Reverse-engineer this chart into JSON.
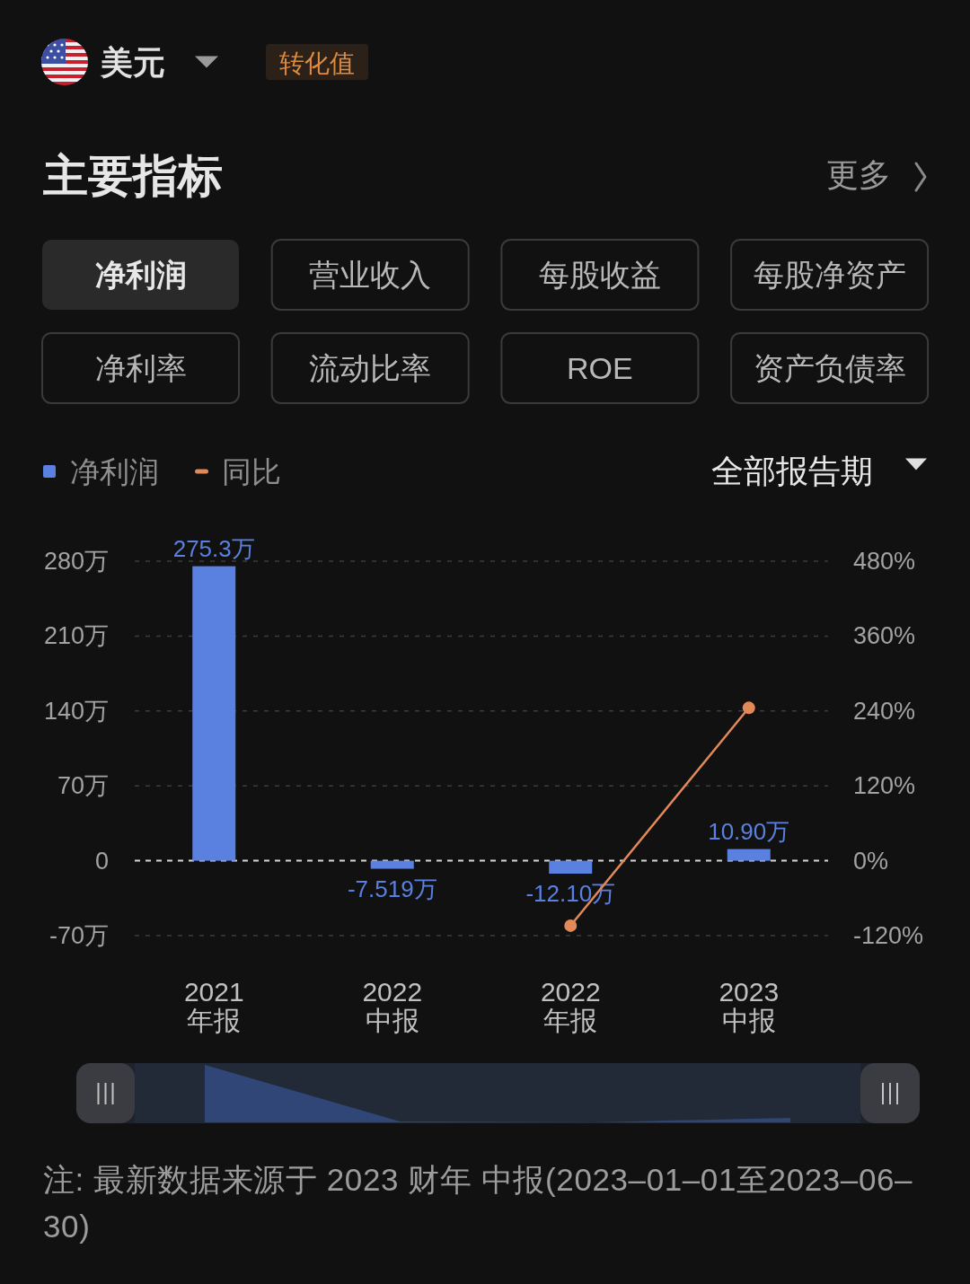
{
  "chart_data": [
    {
      "type": "other",
      "title": "主要指标",
      "annotations": [
        "美元",
        "转化值",
        "更多",
        "净利润",
        "营业收入",
        "每股收益",
        "每股净资产",
        "净利率",
        "流动比率",
        "ROE",
        "资产负债率"
      ]
    },
    {
      "type": "bar",
      "subtitle": "全部报告期",
      "categories": [
        "2021\n年报",
        "2022\n中报",
        "2022\n年报",
        "2023\n中报"
      ],
      "series": [
        {
          "name": "净利润",
          "type": "bar",
          "color": "#5a80e0",
          "values": [
            275.3,
            -7.519,
            -12.1,
            10.9
          ],
          "value_labels": [
            "275.3万",
            "-7.519万",
            "-12.10万",
            "10.90万"
          ]
        },
        {
          "name": "同比",
          "type": "line",
          "axis": "y2",
          "color": "#e2895a",
          "values": [
            null,
            null,
            -104,
            245
          ]
        }
      ],
      "ylim": [
        -70,
        280
      ],
      "yticks": [
        {
          "value": -70,
          "label": "-70万"
        },
        0,
        {
          "value": 70,
          "label": "70万"
        },
        {
          "value": 140,
          "label": "140万"
        },
        {
          "value": 210,
          "label": "210万"
        },
        {
          "value": 280,
          "label": "280万"
        }
      ],
      "y2lim": [
        -120,
        480
      ],
      "y2ticks": [
        {
          "value": -120,
          "label": "-120%"
        },
        {
          "value": 0,
          "label": "0%"
        },
        {
          "value": 120,
          "label": "120%"
        },
        {
          "value": 240,
          "label": "240%"
        },
        {
          "value": 360,
          "label": "360%"
        },
        {
          "value": 480,
          "label": "480%"
        }
      ],
      "ref_lines": [
        {
          "axis": "y",
          "value": 0,
          "color": "#d4d4d4",
          "line_style": "dashed"
        }
      ],
      "grid": "y",
      "legend": "top left",
      "marker": "circle",
      "line_style": "solid",
      "annotations": [
        "注: 最新数据来源于 2023 财年 中报(2023–01–01至2023–06–30)"
      ]
    }
  ]
}
